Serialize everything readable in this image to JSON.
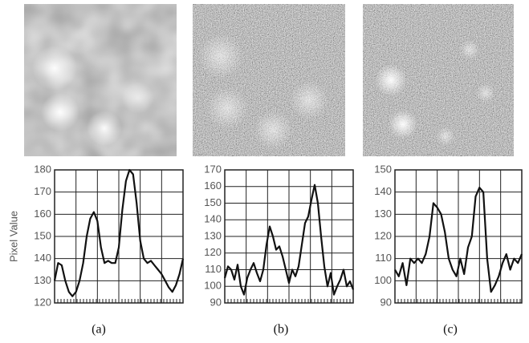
{
  "chart_data": [
    {
      "type": "line",
      "caption": "(a)",
      "ylabel": "Pixel Value",
      "color": "#111111",
      "ylim": [
        120,
        180
      ],
      "yticks": [
        120,
        130,
        140,
        150,
        160,
        170,
        180
      ],
      "grid": true,
      "values": [
        130,
        138,
        137,
        130,
        125,
        123,
        125,
        130,
        138,
        150,
        158,
        161,
        157,
        145,
        138,
        139,
        138,
        138,
        145,
        162,
        175,
        180,
        178,
        165,
        148,
        140,
        138,
        139,
        137,
        135,
        133,
        130,
        127,
        125,
        128,
        133,
        140
      ]
    },
    {
      "type": "line",
      "caption": "(b)",
      "color": "#111111",
      "ylim": [
        90,
        170
      ],
      "yticks": [
        90,
        100,
        110,
        120,
        130,
        140,
        150,
        160,
        170
      ],
      "grid": true,
      "values": [
        105,
        112,
        110,
        104,
        113,
        100,
        95,
        105,
        110,
        114,
        108,
        103,
        110,
        125,
        136,
        130,
        122,
        124,
        118,
        110,
        102,
        110,
        106,
        112,
        125,
        138,
        142,
        152,
        161,
        150,
        130,
        112,
        100,
        108,
        95,
        100,
        104,
        110,
        100,
        103,
        98
      ]
    },
    {
      "type": "line",
      "caption": "(c)",
      "color": "#111111",
      "ylim": [
        90,
        150
      ],
      "yticks": [
        90,
        100,
        110,
        120,
        130,
        140,
        150
      ],
      "grid": true,
      "values": [
        105,
        102,
        108,
        98,
        110,
        108,
        110,
        108,
        112,
        120,
        135,
        133,
        130,
        122,
        110,
        105,
        102,
        110,
        103,
        115,
        120,
        138,
        142,
        140,
        110,
        95,
        98,
        102,
        108,
        112,
        105,
        110,
        108,
        112
      ]
    }
  ]
}
